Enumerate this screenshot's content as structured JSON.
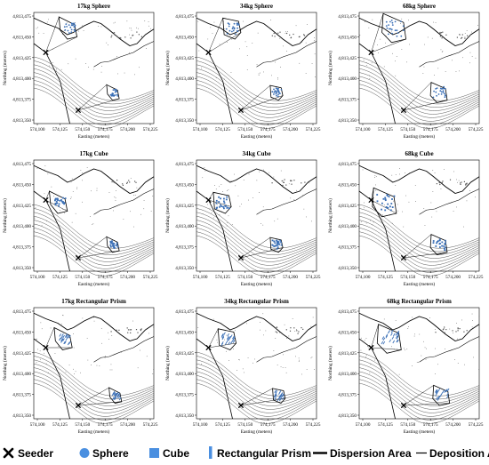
{
  "figure": {
    "panels": [
      {
        "title": "17kg Sphere",
        "shape": "sphere",
        "seeder_color": "#000000"
      },
      {
        "title": "34kg Sphere",
        "shape": "sphere",
        "seeder_color": "#000000"
      },
      {
        "title": "68kg Sphere",
        "shape": "sphere",
        "seeder_color": "#000000"
      },
      {
        "title": "17kg Cube",
        "shape": "cube",
        "seeder_color": "#000000"
      },
      {
        "title": "34kg Cube",
        "shape": "cube",
        "seeder_color": "#000000"
      },
      {
        "title": "68kg Cube",
        "shape": "cube",
        "seeder_color": "#000000"
      },
      {
        "title": "17kg Rectangular Prism",
        "shape": "prism",
        "seeder_color": "#000000"
      },
      {
        "title": "34kg Rectangular Prism",
        "shape": "prism",
        "seeder_color": "#000000"
      },
      {
        "title": "68kg Rectangular Prism",
        "shape": "prism",
        "seeder_color": "#000000"
      }
    ],
    "y_ticks": [
      "4,813,475",
      "4,813,450",
      "4,813,425",
      "4,813,400",
      "4,813,375",
      "4,813,350"
    ],
    "x_ticks": [
      "574,100",
      "574,125",
      "574,150",
      "574,175",
      "574,200",
      "574,225"
    ],
    "x_label": "Easting (meters)",
    "y_label": "Northing (meters)"
  },
  "legend": {
    "seeder": "Seeder",
    "sphere": "Sphere",
    "cube": "Cube",
    "prism": "Rectangular Prism",
    "dispersion": "Dispersion Area",
    "deposition": "Deposition Area"
  },
  "colors": {
    "particle": "#3a6fb6",
    "legend_sphere": "#4a8fe0",
    "legend_cube": "#4a8fe0",
    "contour": "#444444",
    "outline": "#000000"
  }
}
